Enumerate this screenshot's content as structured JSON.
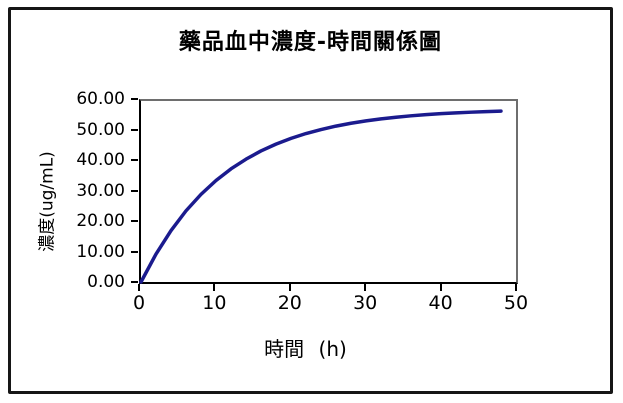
{
  "chart_data": {
    "type": "line",
    "title": "藥品血中濃度-時間關係圖",
    "xlabel": "時間 (h)",
    "ylabel": "濃度(ug/mL)",
    "xlim": [
      0,
      50
    ],
    "ylim": [
      0,
      60
    ],
    "grid": false,
    "legend": "none",
    "line_color": "#1b1b8e",
    "line_width": 3.5,
    "x_ticks": {
      "values": [
        0,
        10,
        20,
        30,
        40,
        50
      ],
      "labels": [
        "0",
        "10",
        "20",
        "30",
        "40",
        "50"
      ]
    },
    "y_ticks": {
      "values": [
        0,
        10,
        20,
        30,
        40,
        50,
        60
      ],
      "labels": [
        "0.00",
        "10.00",
        "20.00",
        "30.00",
        "40.00",
        "50.00",
        "60.00"
      ]
    },
    "series": [
      {
        "x": [
          0,
          2,
          4,
          6,
          8,
          10,
          12,
          14,
          16,
          18,
          20,
          22,
          24,
          26,
          28,
          30,
          32,
          34,
          36,
          38,
          40,
          42,
          44,
          46,
          48
        ],
        "y": [
          0.0,
          9.28,
          17.06,
          23.59,
          29.06,
          33.65,
          37.5,
          40.73,
          43.43,
          45.7,
          47.61,
          49.2,
          50.54,
          51.67,
          52.61,
          53.4,
          54.06,
          54.62,
          55.08,
          55.47,
          55.8,
          56.07,
          56.3,
          56.5,
          56.66
        ]
      }
    ]
  }
}
